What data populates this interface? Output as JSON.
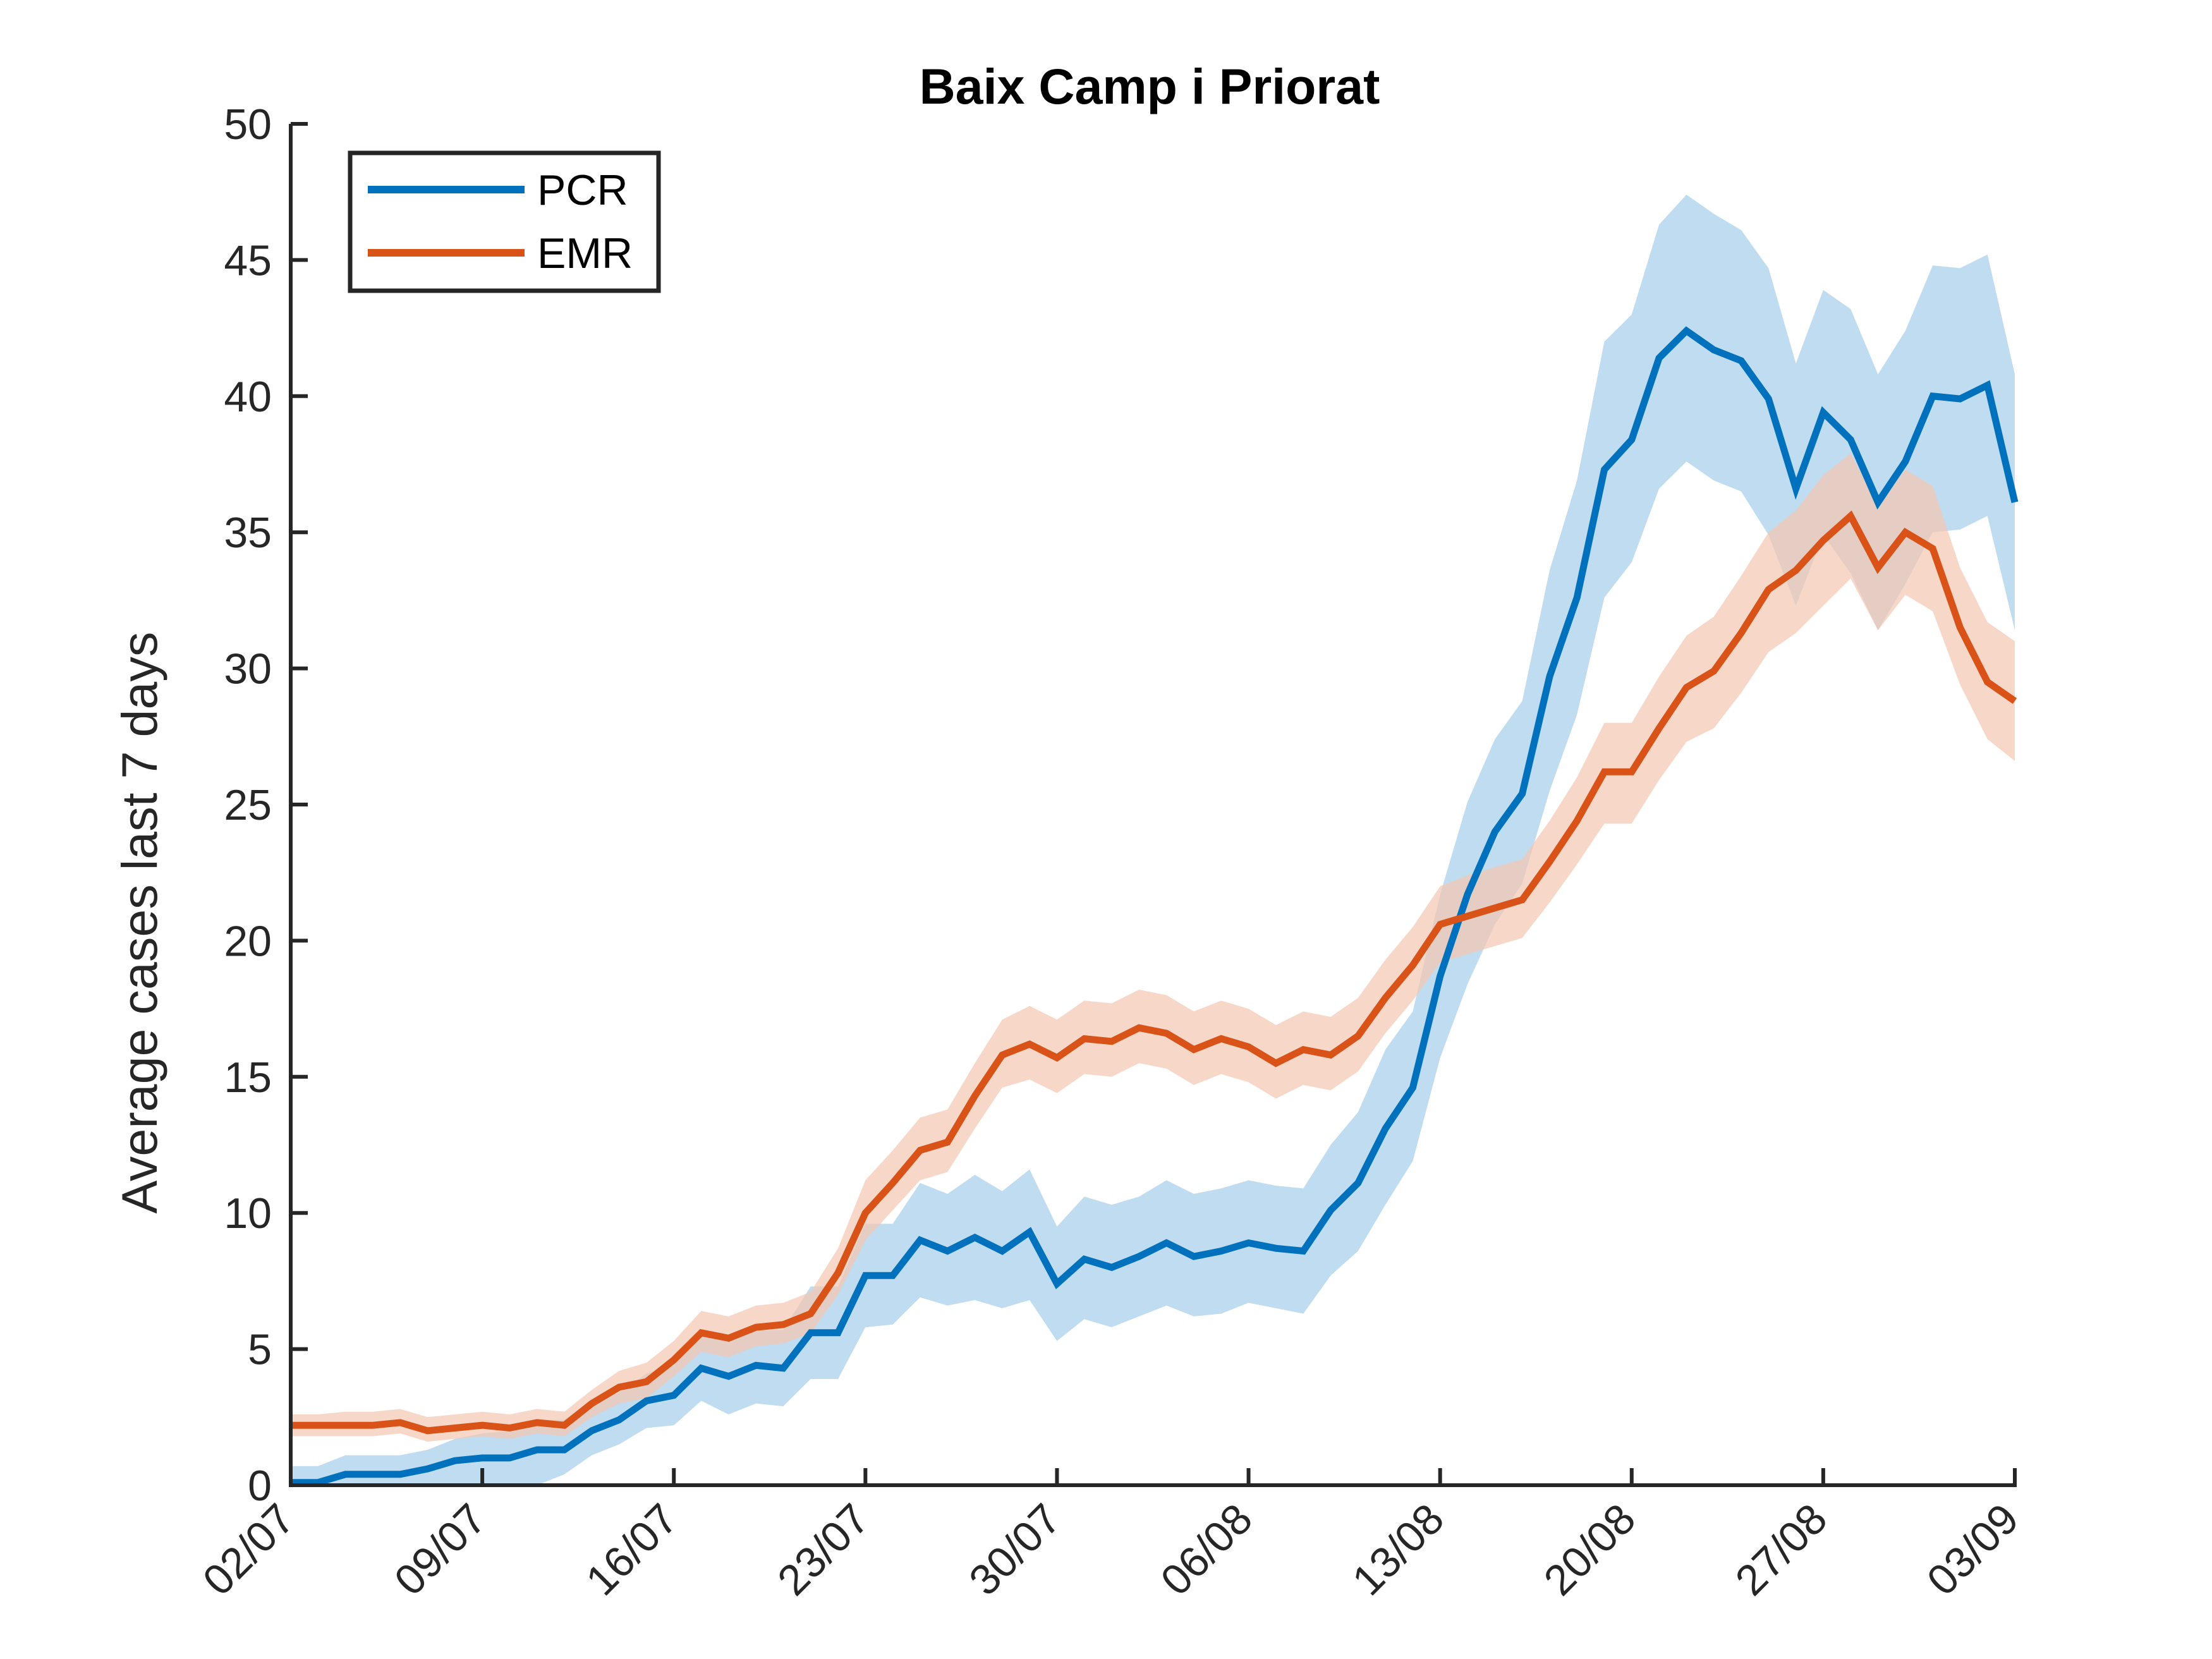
{
  "chart_data": {
    "type": "line",
    "title": "Baix Camp i Priorat",
    "xlabel": "",
    "ylabel": "Average cases last 7 days",
    "ylim": [
      0,
      50
    ],
    "yticks": [
      "0",
      "5",
      "10",
      "15",
      "20",
      "25",
      "30",
      "35",
      "40",
      "45",
      "50"
    ],
    "xticks": [
      "02/07",
      "09/07",
      "16/07",
      "23/07",
      "30/07",
      "06/08",
      "13/08",
      "20/08",
      "27/08",
      "03/09"
    ],
    "x": [
      "02/07",
      "03/07",
      "04/07",
      "05/07",
      "06/07",
      "07/07",
      "08/07",
      "09/07",
      "10/07",
      "11/07",
      "12/07",
      "13/07",
      "14/07",
      "15/07",
      "16/07",
      "17/07",
      "18/07",
      "19/07",
      "20/07",
      "21/07",
      "22/07",
      "23/07",
      "24/07",
      "25/07",
      "26/07",
      "27/07",
      "28/07",
      "29/07",
      "30/07",
      "31/07",
      "01/08",
      "02/08",
      "03/08",
      "04/08",
      "05/08",
      "06/08",
      "07/08",
      "08/08",
      "09/08",
      "10/08",
      "11/08",
      "12/08",
      "13/08",
      "14/08",
      "15/08",
      "16/08",
      "17/08",
      "18/08",
      "19/08",
      "20/08",
      "21/08",
      "22/08",
      "23/08",
      "24/08",
      "25/08",
      "26/08",
      "27/08",
      "28/08",
      "29/08",
      "30/08",
      "31/08",
      "01/09",
      "02/09",
      "03/09"
    ],
    "grid": false,
    "legend_position": "top-left",
    "series": [
      {
        "name": "PCR",
        "color": "#0072BD",
        "band_color": "#A7CEEA",
        "values": [
          0.1,
          0.1,
          0.4,
          0.4,
          0.4,
          0.6,
          0.9,
          1.0,
          1.0,
          1.3,
          1.3,
          2.0,
          2.4,
          3.1,
          3.3,
          4.3,
          4.0,
          4.4,
          4.3,
          5.6,
          5.6,
          7.7,
          7.7,
          9.0,
          8.6,
          9.1,
          8.6,
          9.3,
          7.4,
          8.3,
          8.0,
          8.4,
          8.9,
          8.4,
          8.6,
          8.9,
          8.7,
          8.6,
          10.1,
          11.1,
          13.1,
          14.6,
          18.7,
          21.7,
          24.0,
          25.4,
          29.7,
          32.6,
          37.3,
          38.4,
          41.4,
          42.4,
          41.7,
          41.3,
          39.9,
          36.6,
          39.4,
          38.4,
          36.1,
          37.6,
          40.0,
          39.9,
          40.4,
          36.1
        ],
        "lower": [
          0.0,
          0.0,
          0.0,
          0.0,
          0.0,
          0.0,
          0.0,
          0.0,
          0.0,
          0.0,
          0.4,
          1.1,
          1.5,
          2.1,
          2.2,
          3.1,
          2.6,
          3.0,
          2.9,
          3.9,
          3.9,
          5.8,
          5.9,
          6.9,
          6.6,
          6.8,
          6.5,
          6.8,
          5.3,
          6.1,
          5.8,
          6.2,
          6.6,
          6.2,
          6.3,
          6.7,
          6.5,
          6.3,
          7.7,
          8.6,
          10.3,
          11.9,
          15.7,
          18.4,
          20.6,
          22.1,
          25.5,
          28.3,
          32.6,
          33.9,
          36.6,
          37.6,
          36.9,
          36.5,
          34.9,
          32.3,
          34.9,
          33.5,
          31.4,
          33.1,
          35.0,
          35.1,
          35.6,
          31.4
        ],
        "upper": [
          0.7,
          0.7,
          1.1,
          1.1,
          1.1,
          1.3,
          1.7,
          1.9,
          2.0,
          2.4,
          2.4,
          3.1,
          3.4,
          4.1,
          4.4,
          5.5,
          5.4,
          5.7,
          5.7,
          7.3,
          7.3,
          9.6,
          9.6,
          11.1,
          10.7,
          11.4,
          10.8,
          11.6,
          9.5,
          10.6,
          10.3,
          10.6,
          11.2,
          10.7,
          10.9,
          11.2,
          11.0,
          10.9,
          12.5,
          13.7,
          16.0,
          17.4,
          21.7,
          25.1,
          27.4,
          28.8,
          33.6,
          36.9,
          42.0,
          43.0,
          46.3,
          47.4,
          46.7,
          46.1,
          44.7,
          41.2,
          43.9,
          43.2,
          40.8,
          42.4,
          44.8,
          44.7,
          45.2,
          40.8
        ]
      },
      {
        "name": "EMR",
        "color": "#D95319",
        "band_color": "#F4C8B3",
        "values": [
          2.2,
          2.2,
          2.2,
          2.2,
          2.3,
          2.0,
          2.1,
          2.2,
          2.1,
          2.3,
          2.2,
          3.0,
          3.6,
          3.8,
          4.6,
          5.6,
          5.4,
          5.8,
          5.9,
          6.3,
          7.8,
          10.0,
          11.1,
          12.3,
          12.6,
          14.3,
          15.8,
          16.2,
          15.7,
          16.4,
          16.3,
          16.8,
          16.6,
          16.0,
          16.4,
          16.1,
          15.5,
          16.0,
          15.8,
          16.5,
          17.9,
          19.1,
          20.6,
          20.9,
          21.2,
          21.5,
          22.9,
          24.4,
          26.2,
          26.2,
          27.8,
          29.3,
          29.9,
          31.3,
          32.9,
          33.6,
          34.7,
          35.6,
          33.7,
          35.0,
          34.4,
          31.5,
          29.5,
          28.8
        ],
        "lower": [
          1.8,
          1.8,
          1.8,
          1.8,
          1.9,
          1.6,
          1.7,
          1.8,
          1.7,
          1.9,
          1.8,
          2.5,
          3.0,
          3.2,
          4.0,
          4.9,
          4.7,
          5.1,
          5.2,
          5.6,
          7.0,
          9.0,
          10.1,
          11.2,
          11.5,
          13.1,
          14.6,
          14.9,
          14.4,
          15.1,
          15.0,
          15.5,
          15.3,
          14.7,
          15.1,
          14.8,
          14.2,
          14.7,
          14.5,
          15.2,
          16.6,
          17.8,
          19.2,
          19.5,
          19.8,
          20.1,
          21.4,
          22.8,
          24.3,
          24.3,
          25.9,
          27.3,
          27.8,
          29.1,
          30.6,
          31.3,
          32.3,
          33.3,
          31.4,
          32.7,
          32.1,
          29.4,
          27.4,
          26.6
        ],
        "upper": [
          2.6,
          2.6,
          2.7,
          2.7,
          2.8,
          2.5,
          2.6,
          2.7,
          2.6,
          2.8,
          2.7,
          3.5,
          4.2,
          4.5,
          5.3,
          6.4,
          6.2,
          6.6,
          6.7,
          7.1,
          8.7,
          11.2,
          12.3,
          13.5,
          13.8,
          15.5,
          17.1,
          17.6,
          17.1,
          17.8,
          17.7,
          18.2,
          18.0,
          17.4,
          17.8,
          17.5,
          16.9,
          17.4,
          17.2,
          17.9,
          19.3,
          20.5,
          22.0,
          22.4,
          22.7,
          23.0,
          24.4,
          26.0,
          28.0,
          28.0,
          29.7,
          31.2,
          31.9,
          33.4,
          35.0,
          35.8,
          37.1,
          37.9,
          36.0,
          37.3,
          36.7,
          33.7,
          31.7,
          31.0
        ]
      }
    ]
  }
}
